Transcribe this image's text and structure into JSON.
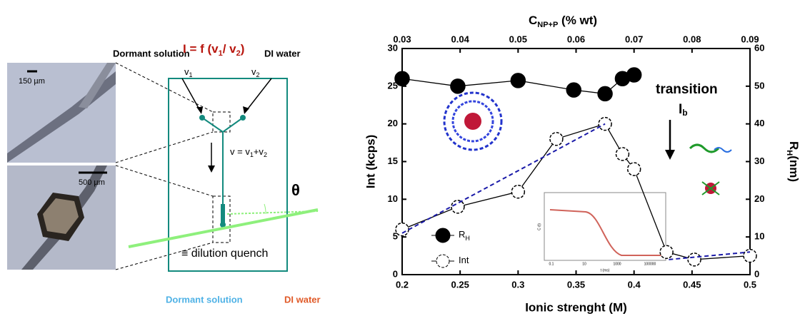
{
  "diagram": {
    "scale_top": "150 µm",
    "scale_bottom": "500 µm",
    "inlet_left": "Dormant solution",
    "inlet_right": "DI water",
    "formula": {
      "a": "I = f (v",
      "s1": "1",
      "b": "/ v",
      "s2": "2",
      "c": ")"
    },
    "v1": {
      "t": "v",
      "s": "1"
    },
    "v2": {
      "t": "v",
      "s": "2"
    },
    "sum": {
      "a": "v = v",
      "s1": "1",
      "b": "+v",
      "s2": "2"
    },
    "theta": "θ",
    "quench": "≡ dilution quench",
    "legend_dormant": "Dormant solution",
    "legend_water": "DI water"
  },
  "chart_data": {
    "type": "line",
    "xlabel": "Ionic strenght (M)",
    "ylabel": "Int (kcps)",
    "y2label": {
      "t": "R",
      "s": "H",
      "r": "(nm)"
    },
    "x2label": {
      "t": "C",
      "s": "NP+P",
      "r": " (% wt)"
    },
    "xlim": [
      0.2,
      0.5
    ],
    "xticks": [
      0.2,
      0.25,
      0.3,
      0.35,
      0.4,
      0.45,
      0.5
    ],
    "x2lim": [
      0.03,
      0.09
    ],
    "x2ticks": [
      0.03,
      0.04,
      0.05,
      0.06,
      0.07,
      0.08,
      0.09
    ],
    "ylim": [
      0,
      30
    ],
    "yticks": [
      0,
      5,
      10,
      15,
      20,
      25,
      30
    ],
    "y2lim": [
      0,
      60
    ],
    "y2ticks": [
      0,
      10,
      20,
      30,
      40,
      50,
      60
    ],
    "series": [
      {
        "name": "R",
        "name_sub": "H",
        "color": "#000000",
        "axis": "y2",
        "x": [
          0.2,
          0.248,
          0.3,
          0.348,
          0.375,
          0.39,
          0.4
        ],
        "values": [
          52,
          50,
          51.5,
          49,
          48,
          52,
          53
        ]
      },
      {
        "name": "Int",
        "color": "#000000",
        "x": [
          0.2,
          0.248,
          0.3,
          0.333,
          0.375,
          0.39,
          0.4,
          0.428,
          0.452,
          0.5
        ],
        "values": [
          6,
          9,
          11,
          18,
          20,
          16,
          14,
          3,
          2,
          2.5
        ]
      },
      {
        "color": "#1a1aa8",
        "dashed": true,
        "x": [
          0.2,
          0.375,
          0.4,
          0.43,
          0.5
        ],
        "values": [
          5.5,
          20,
          null,
          2,
          3
        ]
      }
    ],
    "annotations": {
      "transition": "transition",
      "ib": {
        "t": "I",
        "s": "b"
      }
    },
    "inset": {
      "ylabel": "C (t)",
      "xlabel": "t (ms)",
      "xticks": [
        "0.1",
        "10",
        "1000",
        "100000"
      ]
    }
  }
}
